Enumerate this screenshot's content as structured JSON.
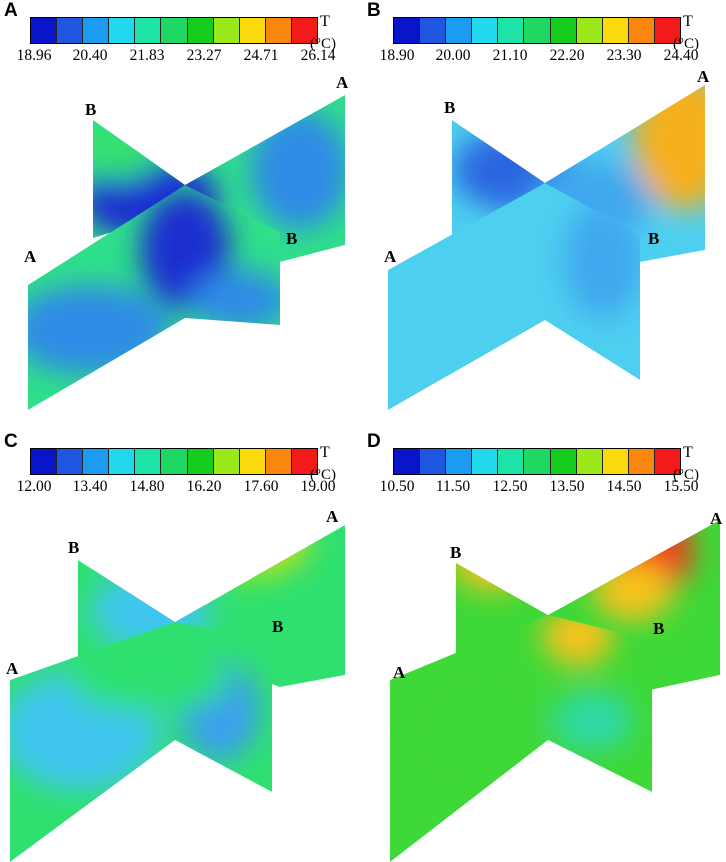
{
  "colorbar_colors": [
    "#0a14c8",
    "#1f56e0",
    "#1b9cf0",
    "#22d8ec",
    "#1ee3a6",
    "#1fd864",
    "#16cc1c",
    "#9be81b",
    "#fbd90f",
    "#f8860f",
    "#f41a1a"
  ],
  "panels": [
    {
      "letter": "A",
      "scale": {
        "ticks": [
          "18.96",
          "20.40",
          "21.83",
          "23.27",
          "24.71",
          "26.14"
        ],
        "quantity": "T",
        "unit": "(°C)"
      },
      "labels": {
        "a_top": "A",
        "b_top": "B",
        "a_front": "A",
        "b_front": "B"
      },
      "colors": {
        "base": "#2fdf8a",
        "cool": "#2e8be6",
        "cold": "#1a2fd0",
        "warm": "#35e070",
        "hot": "#3bdc57"
      }
    },
    {
      "letter": "B",
      "scale": {
        "ticks": [
          "18.90",
          "20.00",
          "21.10",
          "22.20",
          "23.30",
          "24.40"
        ],
        "quantity": "T",
        "unit": "(°C)"
      },
      "labels": {
        "a_top": "A",
        "b_top": "B",
        "a_front": "A",
        "b_front": "B"
      },
      "colors": {
        "base": "#4dcff0",
        "cool": "#3fa8ee",
        "cold": "#2a66e0",
        "warm": "#3fdc88",
        "hot": "#f6b01a"
      }
    },
    {
      "letter": "C",
      "scale": {
        "ticks": [
          "12.00",
          "13.40",
          "14.80",
          "16.20",
          "17.60",
          "19.00"
        ],
        "quantity": "T",
        "unit": "(°C)"
      },
      "labels": {
        "a_top": "A",
        "b_top": "B",
        "a_front": "A",
        "b_front": "B"
      },
      "colors": {
        "base": "#2fe070",
        "cool": "#3fc6ee",
        "cold": "#3aa0ec",
        "warm": "#8ee426",
        "hot": "#d6da1a"
      }
    },
    {
      "letter": "D",
      "scale": {
        "ticks": [
          "10.50",
          "11.50",
          "12.50",
          "13.50",
          "14.50",
          "15.50"
        ],
        "quantity": "T",
        "unit": "(°C)"
      },
      "labels": {
        "a_top": "A",
        "b_top": "B",
        "a_front": "A",
        "b_front": "B"
      },
      "colors": {
        "base": "#3ed838",
        "cool": "#2fd9a8",
        "cold": "#22c6cf",
        "warm": "#f7c21c",
        "hot": "#f03a1c"
      }
    }
  ]
}
